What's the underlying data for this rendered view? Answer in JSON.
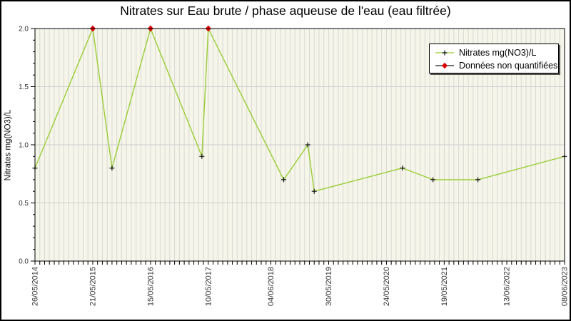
{
  "title": "Nitrates sur Eau brute / phase aqueuse de l'eau (eau filtrée)",
  "colors": {
    "background": "#ffffff",
    "plot_bg": "#f5f5ea",
    "grid_vertical": "#d9d9d4",
    "grid_horizontal": "#cfcfcf",
    "axis": "#000000",
    "series_line": "#9acd32",
    "marker_quantified": "#111111",
    "marker_non_quantified": "#dd0000",
    "tick_text": "#333333",
    "legend_stub_line": "#222222"
  },
  "legend": {
    "items": [
      {
        "label": "Nitrates mg(NO3)/L",
        "marker": "plus",
        "line_color": "#9acd32"
      },
      {
        "label": "Données non quantifiées",
        "marker": "diamond",
        "line_color": "#222222"
      }
    ]
  },
  "chart_data": {
    "type": "line",
    "title": "Nitrates sur Eau brute / phase aqueuse de l'eau (eau filtrée)",
    "xlabel": "",
    "ylabel": "Nitrates mg(NO3)/L",
    "ylim": [
      0.0,
      2.0
    ],
    "y_tick_labels": [
      "0.0",
      "0.5",
      "1.0",
      "1.5",
      "2.0"
    ],
    "y_minor_step": 0.1,
    "grid": "dense vertical minor gridlines (30-day steps) + horizontal gridlines at 0.5 steps",
    "legend_position": "top-right",
    "x_range_days": 3300,
    "minor_tick_days": 30,
    "x_ticks": [
      {
        "label": "26/05/2014",
        "days": 0
      },
      {
        "label": "21/05/2015",
        "days": 360
      },
      {
        "label": "15/05/2016",
        "days": 720
      },
      {
        "label": "10/05/2017",
        "days": 1080
      },
      {
        "label": "04/06/2018",
        "days": 1470
      },
      {
        "label": "30/05/2019",
        "days": 1830
      },
      {
        "label": "24/05/2020",
        "days": 2190
      },
      {
        "label": "19/05/2021",
        "days": 2550
      },
      {
        "label": "13/06/2022",
        "days": 2940
      },
      {
        "label": "08/06/2023",
        "days": 3300
      }
    ],
    "series_name": "Nitrates mg(NO3)/L",
    "non_quantified_name": "Données non quantifiées",
    "points": [
      {
        "days": 0,
        "value": 0.8,
        "quantified": true
      },
      {
        "days": 360,
        "value": 2.0,
        "quantified": false
      },
      {
        "days": 480,
        "value": 0.8,
        "quantified": true
      },
      {
        "days": 720,
        "value": 2.0,
        "quantified": false
      },
      {
        "days": 1040,
        "value": 0.9,
        "quantified": true
      },
      {
        "days": 1080,
        "value": 2.0,
        "quantified": false
      },
      {
        "days": 1550,
        "value": 0.7,
        "quantified": true
      },
      {
        "days": 1700,
        "value": 1.0,
        "quantified": true
      },
      {
        "days": 1740,
        "value": 0.6,
        "quantified": true
      },
      {
        "days": 2290,
        "value": 0.8,
        "quantified": true
      },
      {
        "days": 2480,
        "value": 0.7,
        "quantified": true
      },
      {
        "days": 2760,
        "value": 0.7,
        "quantified": true
      },
      {
        "days": 3300,
        "value": 0.9,
        "quantified": true
      }
    ]
  }
}
